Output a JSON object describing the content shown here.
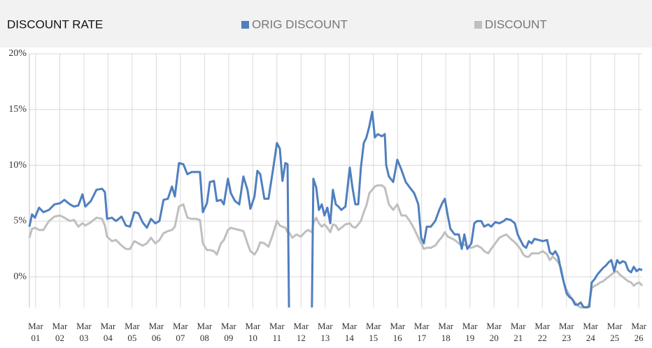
{
  "chart_data": {
    "type": "line",
    "title": "DISCOUNT RATE",
    "legend": "top",
    "xlim": [
      2000.91,
      2026.31
    ],
    "ylim": [
      -2.75,
      20
    ],
    "grid": true,
    "yticks": [
      {
        "value": 0,
        "label": "0%"
      },
      {
        "value": 5,
        "label": "5%"
      },
      {
        "value": 10,
        "label": "10%"
      },
      {
        "value": 15,
        "label": "15%"
      },
      {
        "value": 20,
        "label": "20%"
      }
    ],
    "xticks": [
      {
        "value": 2001.17,
        "label": "Mar 01"
      },
      {
        "value": 2002.17,
        "label": "Mar 02"
      },
      {
        "value": 2003.17,
        "label": "Mar 03"
      },
      {
        "value": 2004.17,
        "label": "Mar 04"
      },
      {
        "value": 2005.17,
        "label": "Mar 05"
      },
      {
        "value": 2006.17,
        "label": "Mar 06"
      },
      {
        "value": 2007.17,
        "label": "Mar 07"
      },
      {
        "value": 2008.17,
        "label": "Mar 08"
      },
      {
        "value": 2009.17,
        "label": "Mar 09"
      },
      {
        "value": 2010.17,
        "label": "Mar 10"
      },
      {
        "value": 2011.17,
        "label": "Mar 11"
      },
      {
        "value": 2012.17,
        "label": "Mar 12"
      },
      {
        "value": 2013.17,
        "label": "Mar 13"
      },
      {
        "value": 2014.17,
        "label": "Mar 14"
      },
      {
        "value": 2015.17,
        "label": "Mar 15"
      },
      {
        "value": 2016.17,
        "label": "Mar 16"
      },
      {
        "value": 2017.17,
        "label": "Mar 17"
      },
      {
        "value": 2018.17,
        "label": "Mar 18"
      },
      {
        "value": 2019.17,
        "label": "Mar 19"
      },
      {
        "value": 2020.17,
        "label": "Mar 20"
      },
      {
        "value": 2021.17,
        "label": "Mar 21"
      },
      {
        "value": 2022.17,
        "label": "Mar 22"
      },
      {
        "value": 2023.17,
        "label": "Mar 23"
      },
      {
        "value": 2024.17,
        "label": "Mar 24"
      },
      {
        "value": 2025.17,
        "label": "Mar 25"
      },
      {
        "value": 2026.17,
        "label": "Mar 26"
      }
    ],
    "x": [
      2000.91,
      2001.02,
      2001.14,
      2001.31,
      2001.49,
      2001.72,
      2001.95,
      2002.18,
      2002.36,
      2002.59,
      2002.76,
      2002.94,
      2003.11,
      2003.23,
      2003.46,
      2003.69,
      2003.92,
      2004.04,
      2004.13,
      2004.33,
      2004.5,
      2004.73,
      2004.91,
      2005.08,
      2005.26,
      2005.43,
      2005.6,
      2005.78,
      2005.95,
      2006.13,
      2006.3,
      2006.47,
      2006.65,
      2006.82,
      2006.94,
      2007.11,
      2007.29,
      2007.46,
      2007.63,
      2007.81,
      2007.98,
      2008.1,
      2008.27,
      2008.39,
      2008.56,
      2008.68,
      2008.85,
      2008.97,
      2009.14,
      2009.26,
      2009.43,
      2009.61,
      2009.78,
      2009.95,
      2010.07,
      2010.24,
      2010.36,
      2010.48,
      2010.65,
      2010.82,
      2011.0,
      2011.17,
      2011.29,
      2011.4,
      2011.52,
      2011.61,
      2011.67,
      2011.81,
      2011.98,
      2012.16,
      2012.33,
      2012.45,
      2012.62,
      2012.68,
      2012.8,
      2012.91,
      2013.03,
      2013.14,
      2013.26,
      2013.38,
      2013.49,
      2013.61,
      2013.72,
      2013.84,
      2014.01,
      2014.19,
      2014.3,
      2014.42,
      2014.54,
      2014.65,
      2014.77,
      2014.88,
      2015.0,
      2015.12,
      2015.23,
      2015.35,
      2015.52,
      2015.64,
      2015.7,
      2015.81,
      2015.99,
      2016.16,
      2016.33,
      2016.51,
      2016.68,
      2016.86,
      2017.03,
      2017.15,
      2017.26,
      2017.38,
      2017.55,
      2017.73,
      2017.9,
      2018.02,
      2018.13,
      2018.25,
      2018.36,
      2018.54,
      2018.71,
      2018.83,
      2018.94,
      2019.06,
      2019.23,
      2019.35,
      2019.47,
      2019.64,
      2019.76,
      2019.93,
      2020.05,
      2020.22,
      2020.39,
      2020.57,
      2020.68,
      2020.86,
      2021.03,
      2021.15,
      2021.26,
      2021.38,
      2021.5,
      2021.61,
      2021.73,
      2021.84,
      2022.02,
      2022.19,
      2022.37,
      2022.48,
      2022.6,
      2022.71,
      2022.83,
      2022.95,
      2023.06,
      2023.18,
      2023.29,
      2023.41,
      2023.53,
      2023.64,
      2023.76,
      2023.87,
      2023.99,
      2024.11,
      2024.22,
      2024.34,
      2024.45,
      2024.57,
      2024.69,
      2024.8,
      2024.92,
      2025.03,
      2025.15,
      2025.27,
      2025.38,
      2025.5,
      2025.61,
      2025.73,
      2025.85,
      2025.96,
      2026.08,
      2026.19,
      2026.31
    ],
    "series": [
      {
        "name": "ORIG DISCOUNT",
        "color": "#4f7fbf",
        "values": [
          4.5,
          5.6,
          5.3,
          6.2,
          5.8,
          6.0,
          6.5,
          6.6,
          6.9,
          6.5,
          6.3,
          6.4,
          7.4,
          6.3,
          6.8,
          7.8,
          7.9,
          7.6,
          5.2,
          5.3,
          5.0,
          5.4,
          4.6,
          4.5,
          5.8,
          5.7,
          4.9,
          4.4,
          5.2,
          4.8,
          5.0,
          6.9,
          7.0,
          8.1,
          7.2,
          10.2,
          10.1,
          9.2,
          9.4,
          9.4,
          9.4,
          5.8,
          6.6,
          8.5,
          8.6,
          6.8,
          6.9,
          6.5,
          8.8,
          7.5,
          6.8,
          6.5,
          9.0,
          7.8,
          6.1,
          7.2,
          9.5,
          9.2,
          7.0,
          7.0,
          9.5,
          12.0,
          11.5,
          8.6,
          10.2,
          10.1,
          -2.75,
          null,
          null,
          null,
          null,
          null,
          -2.75,
          8.8,
          8.0,
          6.0,
          6.5,
          5.5,
          6.2,
          4.8,
          7.8,
          6.5,
          6.3,
          6.0,
          6.3,
          9.8,
          8.0,
          6.5,
          6.5,
          9.8,
          12.0,
          12.5,
          13.5,
          14.8,
          12.5,
          12.8,
          12.6,
          12.8,
          10.0,
          9.0,
          8.5,
          10.5,
          9.6,
          8.5,
          8.0,
          7.5,
          6.5,
          3.5,
          3.0,
          4.5,
          4.5,
          5.0,
          6.0,
          6.6,
          7.0,
          5.5,
          4.3,
          3.8,
          3.8,
          2.5,
          3.8,
          2.5,
          3.0,
          4.8,
          5.0,
          5.0,
          4.5,
          4.7,
          4.5,
          4.9,
          4.8,
          5.0,
          5.2,
          5.1,
          4.8,
          3.8,
          3.3,
          2.8,
          2.6,
          3.2,
          3.0,
          3.4,
          3.3,
          3.2,
          3.3,
          2.2,
          2.0,
          2.3,
          1.8,
          0.5,
          -0.5,
          -1.5,
          -1.8,
          -2.0,
          -2.5,
          -2.5,
          -2.3,
          -2.7,
          -2.75,
          -2.7,
          -0.5,
          -0.2,
          0.2,
          0.5,
          0.8,
          1.0,
          1.3,
          1.5,
          0.5,
          1.5,
          1.2,
          1.4,
          1.3,
          0.6,
          0.4,
          0.9,
          0.5,
          0.7,
          0.6
        ]
      },
      {
        "name": "DISCOUNT",
        "color": "#bfbfbf",
        "values": [
          3.5,
          4.3,
          4.4,
          4.2,
          4.2,
          5.0,
          5.4,
          5.5,
          5.3,
          5.0,
          5.1,
          4.5,
          4.8,
          4.6,
          4.9,
          5.3,
          5.2,
          4.6,
          3.6,
          3.2,
          3.3,
          2.8,
          2.5,
          2.5,
          3.2,
          3.0,
          2.8,
          3.0,
          3.5,
          3.0,
          3.3,
          3.9,
          4.1,
          4.2,
          4.5,
          6.3,
          6.5,
          5.3,
          5.2,
          5.2,
          5.1,
          3.0,
          2.4,
          2.4,
          2.3,
          2.0,
          3.0,
          3.3,
          4.2,
          4.4,
          4.3,
          4.2,
          4.1,
          3.0,
          2.3,
          2.0,
          2.4,
          3.1,
          3.0,
          2.7,
          3.8,
          5.0,
          4.6,
          4.5,
          4.4,
          4.0,
          4.0,
          3.5,
          3.8,
          3.6,
          4.0,
          4.2,
          4.0,
          4.8,
          5.3,
          4.8,
          4.5,
          4.7,
          4.4,
          4.0,
          4.7,
          4.6,
          4.2,
          4.4,
          4.7,
          4.8,
          4.5,
          4.4,
          4.7,
          5.0,
          5.8,
          6.4,
          7.5,
          7.8,
          8.1,
          8.2,
          8.2,
          8.0,
          7.5,
          6.5,
          6.0,
          6.5,
          5.5,
          5.5,
          5.0,
          4.3,
          3.5,
          3.0,
          2.5,
          2.6,
          2.6,
          2.8,
          3.3,
          3.6,
          4.0,
          3.6,
          3.5,
          3.3,
          3.0,
          2.8,
          2.9,
          2.7,
          2.6,
          2.7,
          2.8,
          2.6,
          2.3,
          2.1,
          2.5,
          3.0,
          3.5,
          3.7,
          3.8,
          3.4,
          3.1,
          2.8,
          2.5,
          2.0,
          1.8,
          1.8,
          2.1,
          2.1,
          2.1,
          2.3,
          2.0,
          1.5,
          1.8,
          1.6,
          1.3,
          0.8,
          -0.5,
          -1.2,
          -1.6,
          -2.0,
          -2.3,
          -2.6,
          -2.75,
          -2.75,
          -2.75,
          -2.5,
          -1.0,
          -0.8,
          -0.7,
          -0.5,
          -0.4,
          -0.2,
          0.0,
          0.2,
          0.4,
          0.5,
          0.2,
          0.0,
          -0.2,
          -0.4,
          -0.5,
          -0.8,
          -0.6,
          -0.5,
          -0.8
        ]
      }
    ]
  }
}
